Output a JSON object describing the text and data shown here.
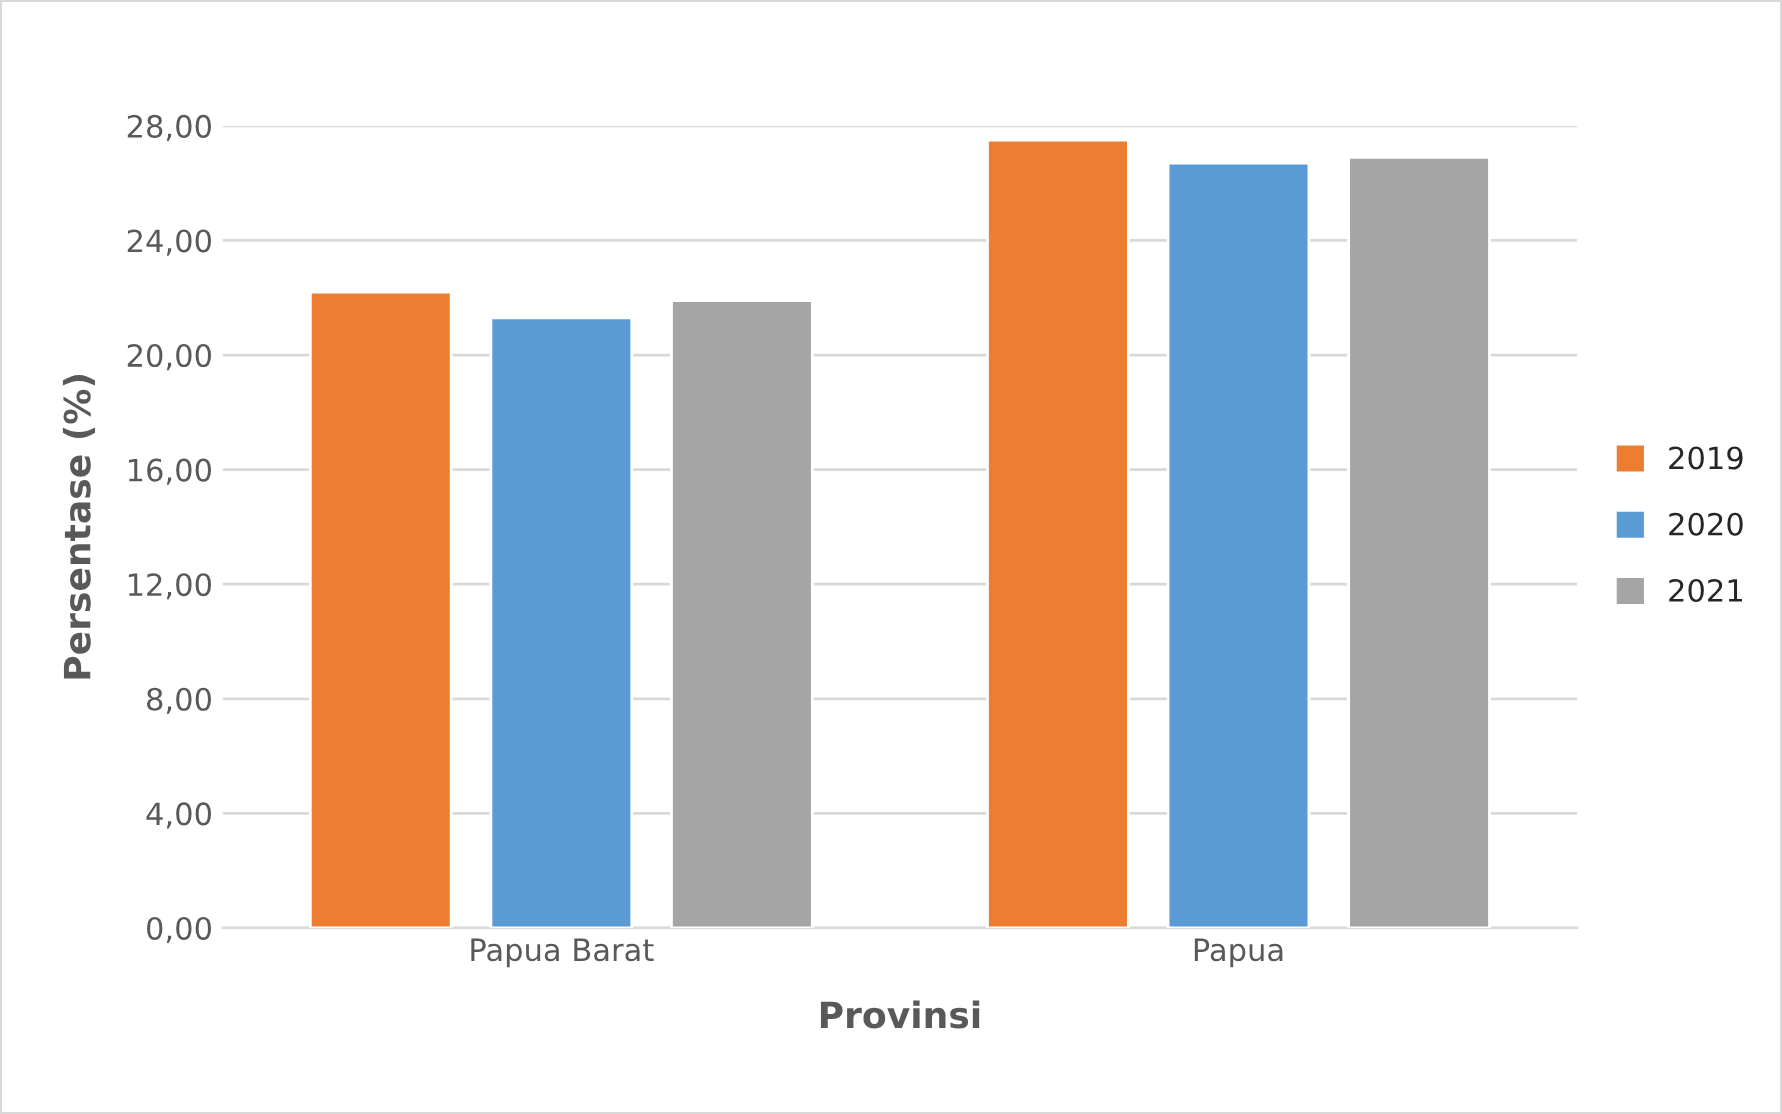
{
  "chart_data": {
    "type": "bar",
    "xlabel": "Provinsi",
    "ylabel": "Persentase (%)",
    "categories": [
      "Papua Barat",
      "Papua"
    ],
    "series": [
      {
        "name": "2019",
        "color": "#ed7d31",
        "values": [
          22.2,
          27.5
        ]
      },
      {
        "name": "2020",
        "color": "#5b9bd5",
        "values": [
          21.3,
          26.7
        ]
      },
      {
        "name": "2021",
        "color": "#a5a5a5",
        "values": [
          21.9,
          26.9
        ]
      }
    ],
    "ylim": [
      0,
      28
    ],
    "yticks": [
      {
        "value": 0,
        "label": "0,00"
      },
      {
        "value": 4,
        "label": "4,00"
      },
      {
        "value": 8,
        "label": "8,00"
      },
      {
        "value": 12,
        "label": "12,00"
      },
      {
        "value": 16,
        "label": "16,00"
      },
      {
        "value": 20,
        "label": "20,00"
      },
      {
        "value": 24,
        "label": "24,00"
      },
      {
        "value": 28,
        "label": "28,00"
      }
    ],
    "grid": "y",
    "legend": "right"
  }
}
